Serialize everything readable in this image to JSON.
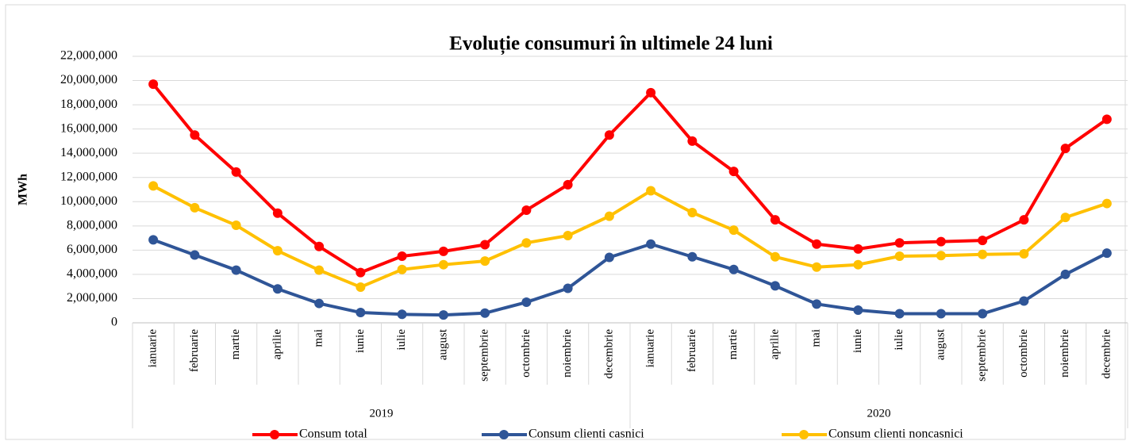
{
  "chart_data": {
    "type": "line",
    "title": "Evoluție consumuri în ultimele 24 luni",
    "y_label": "MWh",
    "categories": [
      "ianuarie",
      "februarie",
      "martie",
      "aprilie",
      "mai",
      "iunie",
      "iulie",
      "august",
      "septembrie",
      "octombrie",
      "noiembrie",
      "decembrie",
      "ianuarie",
      "februarie",
      "martie",
      "aprilie",
      "mai",
      "iunie",
      "iulie",
      "august",
      "septembrie",
      "octombrie",
      "noiembrie",
      "decembrie"
    ],
    "category_groups": [
      "2019",
      "2020"
    ],
    "series": [
      {
        "name": "Consum total",
        "color": "#ff0000",
        "values": [
          19700000,
          15500000,
          12450000,
          9050000,
          6300000,
          4150000,
          5500000,
          5900000,
          6450000,
          9300000,
          11400000,
          15500000,
          19000000,
          15000000,
          12500000,
          8500000,
          6500000,
          6100000,
          6600000,
          6700000,
          6800000,
          8500000,
          14400000,
          16800000
        ]
      },
      {
        "name": "Consum clienti casnici",
        "color": "#2f5597",
        "values": [
          6850000,
          5600000,
          4350000,
          2800000,
          1600000,
          850000,
          700000,
          650000,
          800000,
          1700000,
          2850000,
          5400000,
          6500000,
          5450000,
          4400000,
          3050000,
          1550000,
          1050000,
          750000,
          750000,
          750000,
          1800000,
          4000000,
          5750000
        ]
      },
      {
        "name": "Consum clienti noncasnici",
        "color": "#ffc000",
        "values": [
          11300000,
          9500000,
          8050000,
          5950000,
          4350000,
          2950000,
          4400000,
          4800000,
          5100000,
          6600000,
          7200000,
          8800000,
          10900000,
          9100000,
          7650000,
          5450000,
          4600000,
          4800000,
          5500000,
          5550000,
          5650000,
          5700000,
          8700000,
          9850000
        ]
      }
    ],
    "ylim": [
      0,
      22000000
    ],
    "yticks": [
      0,
      {
        "value": 2000000,
        "label": "2,000,000"
      },
      {
        "value": 4000000,
        "label": "4,000,000"
      },
      {
        "value": 6000000,
        "label": "6,000,000"
      },
      {
        "value": 8000000,
        "label": "8,000,000"
      },
      {
        "value": 10000000,
        "label": "10,000,000"
      },
      {
        "value": 12000000,
        "label": "12,000,000"
      },
      {
        "value": 14000000,
        "label": "14,000,000"
      },
      {
        "value": 16000000,
        "label": "16,000,000"
      },
      {
        "value": 18000000,
        "label": "18,000,000"
      },
      {
        "value": 20000000,
        "label": "20,000,000"
      },
      {
        "value": 22000000,
        "label": "22,000,000"
      }
    ],
    "grid": true,
    "legend": "bottom"
  }
}
